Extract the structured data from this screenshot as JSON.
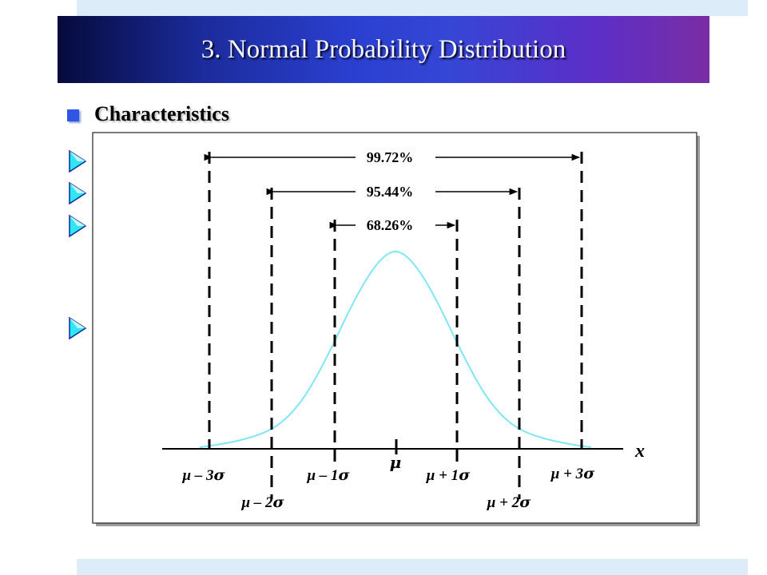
{
  "slide": {
    "title": "3. Normal Probability Distribution",
    "heading": "Characteristics"
  },
  "colors": {
    "title_gradient_start": "#060a3c",
    "title_gradient_mid": "#2a3fd0",
    "title_gradient_end": "#7a2da4",
    "bullet_square": "#2f56e4",
    "bullet_arrow": "#2fe6f2",
    "curve": "#7fe6f5",
    "band": "#dcecf8"
  },
  "diagram": {
    "percent_labels": {
      "three_sigma": "99.72%",
      "two_sigma": "95.44%",
      "one_sigma": "68.26%"
    },
    "axis_var": "x",
    "tick_labels": [
      {
        "id": "m3",
        "prefix": "μ – 3",
        "sym": "σ"
      },
      {
        "id": "m2",
        "prefix": "μ – 2",
        "sym": "σ"
      },
      {
        "id": "m1",
        "prefix": "μ – 1",
        "sym": "σ"
      },
      {
        "id": "mu",
        "prefix": "",
        "sym": "μ"
      },
      {
        "id": "p1",
        "prefix": "μ + 1",
        "sym": "σ"
      },
      {
        "id": "p2",
        "prefix": "μ + 2",
        "sym": "σ"
      },
      {
        "id": "p3",
        "prefix": "μ + 3",
        "sym": "σ"
      }
    ]
  },
  "icons": {
    "title_bullet": "square-bullet-icon",
    "list_bullet": "triangle-arrow-icon"
  }
}
